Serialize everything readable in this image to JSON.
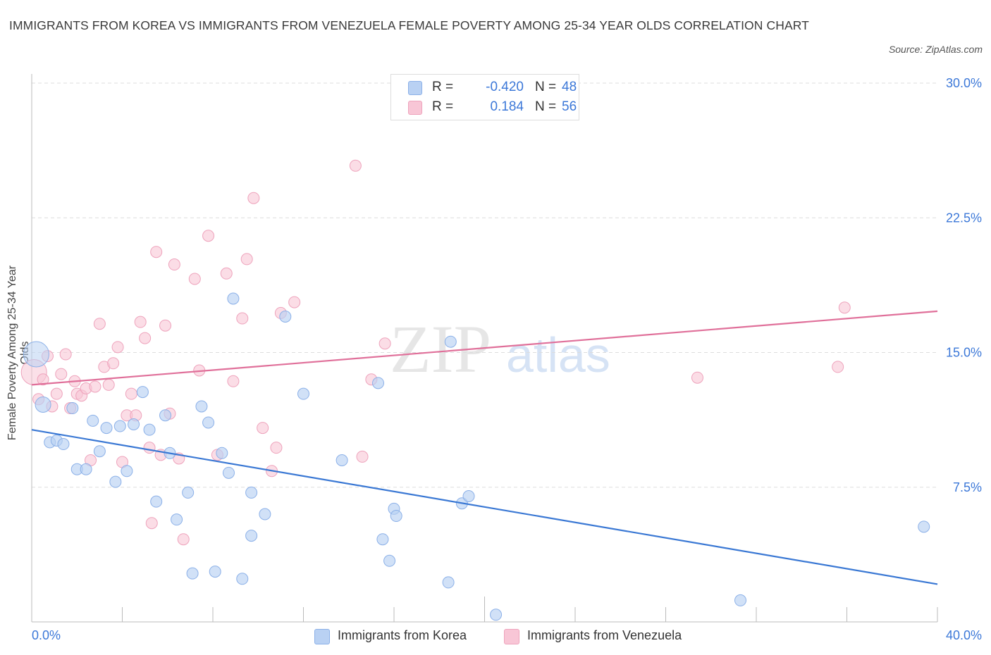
{
  "title": "IMMIGRANTS FROM KOREA VS IMMIGRANTS FROM VENEZUELA FEMALE POVERTY AMONG 25-34 YEAR OLDS CORRELATION CHART",
  "source": "Source: ZipAtlas.com",
  "watermark": {
    "zip": "ZIP",
    "atlas": "atlas"
  },
  "colors": {
    "korea_fill": "#b9d1f3",
    "korea_stroke": "#8bb0e8",
    "korea_line": "#3a78d4",
    "venezuela_fill": "#f8c6d6",
    "venezuela_stroke": "#eea3bc",
    "venezuela_line": "#e0709a",
    "tick_label": "#3c78d8",
    "grid": "#dddddd"
  },
  "legend_top": {
    "rows": [
      {
        "r_label": "R =",
        "r_value": "-0.420",
        "n_label": "N =",
        "n_value": "48",
        "series": "korea"
      },
      {
        "r_label": "R =",
        "r_value": "0.184",
        "n_label": "N =",
        "n_value": "56",
        "series": "venezuela"
      }
    ]
  },
  "legend_bottom": [
    {
      "label": "Immigrants from Korea",
      "series": "korea"
    },
    {
      "label": "Immigrants from Venezuela",
      "series": "venezuela"
    }
  ],
  "chart_data": {
    "type": "scatter",
    "title": "IMMIGRANTS FROM KOREA VS IMMIGRANTS FROM VENEZUELA FEMALE POVERTY AMONG 25-34 YEAR OLDS CORRELATION CHART",
    "xlabel": "",
    "ylabel": "Female Poverty Among 25-34 Year Olds",
    "xlim": [
      0,
      40
    ],
    "ylim": [
      0,
      30
    ],
    "x_tick_labels": [
      "0.0%",
      "40.0%"
    ],
    "y_ticks": [
      7.5,
      15,
      22.5,
      30
    ],
    "y_tick_labels": [
      "7.5%",
      "15.0%",
      "22.5%",
      "30.0%"
    ],
    "grid": "horizontal dashed",
    "legend_position": "top-center and bottom",
    "series": [
      {
        "name": "Immigrants from Korea",
        "color": "#b9d1f3",
        "trend": {
          "x": [
            0,
            40
          ],
          "y": [
            10.7,
            2.1
          ]
        },
        "points": [
          [
            0.2,
            14.9
          ],
          [
            0.5,
            12.1
          ],
          [
            0.8,
            10.0
          ],
          [
            1.1,
            10.1
          ],
          [
            1.4,
            9.9
          ],
          [
            1.8,
            11.9
          ],
          [
            2.0,
            8.5
          ],
          [
            2.4,
            8.5
          ],
          [
            2.7,
            11.2
          ],
          [
            3.0,
            9.5
          ],
          [
            3.3,
            10.8
          ],
          [
            3.7,
            7.8
          ],
          [
            3.9,
            10.9
          ],
          [
            4.2,
            8.4
          ],
          [
            4.5,
            11.0
          ],
          [
            4.9,
            12.8
          ],
          [
            5.2,
            10.7
          ],
          [
            5.5,
            6.7
          ],
          [
            5.9,
            11.5
          ],
          [
            6.1,
            9.4
          ],
          [
            6.4,
            5.7
          ],
          [
            6.9,
            7.2
          ],
          [
            7.1,
            2.7
          ],
          [
            7.5,
            12.0
          ],
          [
            7.8,
            11.1
          ],
          [
            8.1,
            2.8
          ],
          [
            8.4,
            9.4
          ],
          [
            8.7,
            8.3
          ],
          [
            8.9,
            18.0
          ],
          [
            9.3,
            2.4
          ],
          [
            9.7,
            7.2
          ],
          [
            9.7,
            4.8
          ],
          [
            10.3,
            6.0
          ],
          [
            11.2,
            17.0
          ],
          [
            12.0,
            12.7
          ],
          [
            13.7,
            9.0
          ],
          [
            15.3,
            13.3
          ],
          [
            15.5,
            4.6
          ],
          [
            15.8,
            3.4
          ],
          [
            16.0,
            6.3
          ],
          [
            16.1,
            5.9
          ],
          [
            18.4,
            2.2
          ],
          [
            18.5,
            15.6
          ],
          [
            19.0,
            6.6
          ],
          [
            19.3,
            7.0
          ],
          [
            20.5,
            0.4
          ],
          [
            31.3,
            1.2
          ],
          [
            39.4,
            5.3
          ]
        ]
      },
      {
        "name": "Immigrants from Venezuela",
        "color": "#f8c6d6",
        "trend": {
          "x": [
            0,
            40
          ],
          "y": [
            13.2,
            17.3
          ]
        },
        "points": [
          [
            0.1,
            13.9
          ],
          [
            0.3,
            12.4
          ],
          [
            0.5,
            13.5
          ],
          [
            0.7,
            14.8
          ],
          [
            0.9,
            12.0
          ],
          [
            1.1,
            12.7
          ],
          [
            1.3,
            13.8
          ],
          [
            1.5,
            14.9
          ],
          [
            1.7,
            11.9
          ],
          [
            1.9,
            13.4
          ],
          [
            2.0,
            12.7
          ],
          [
            2.2,
            12.6
          ],
          [
            2.4,
            13.0
          ],
          [
            2.6,
            9.0
          ],
          [
            2.8,
            13.1
          ],
          [
            3.0,
            16.6
          ],
          [
            3.2,
            14.2
          ],
          [
            3.4,
            13.2
          ],
          [
            3.6,
            14.4
          ],
          [
            3.8,
            15.3
          ],
          [
            4.0,
            8.9
          ],
          [
            4.2,
            11.5
          ],
          [
            4.4,
            12.7
          ],
          [
            4.6,
            11.5
          ],
          [
            4.8,
            16.7
          ],
          [
            5.0,
            15.8
          ],
          [
            5.2,
            9.7
          ],
          [
            5.3,
            5.5
          ],
          [
            5.5,
            20.6
          ],
          [
            5.7,
            9.3
          ],
          [
            5.9,
            16.5
          ],
          [
            6.1,
            11.6
          ],
          [
            6.3,
            19.9
          ],
          [
            6.5,
            9.1
          ],
          [
            6.7,
            4.6
          ],
          [
            7.2,
            19.1
          ],
          [
            7.4,
            14.0
          ],
          [
            7.8,
            21.5
          ],
          [
            8.2,
            9.3
          ],
          [
            8.6,
            19.4
          ],
          [
            8.9,
            13.4
          ],
          [
            9.3,
            16.9
          ],
          [
            9.5,
            20.2
          ],
          [
            9.8,
            23.6
          ],
          [
            10.2,
            10.8
          ],
          [
            10.6,
            8.4
          ],
          [
            10.8,
            9.7
          ],
          [
            11.0,
            17.2
          ],
          [
            11.6,
            17.8
          ],
          [
            14.3,
            25.4
          ],
          [
            14.6,
            9.2
          ],
          [
            15.0,
            13.5
          ],
          [
            15.6,
            15.5
          ],
          [
            29.4,
            13.6
          ],
          [
            35.6,
            14.2
          ],
          [
            35.9,
            17.5
          ]
        ]
      }
    ]
  }
}
